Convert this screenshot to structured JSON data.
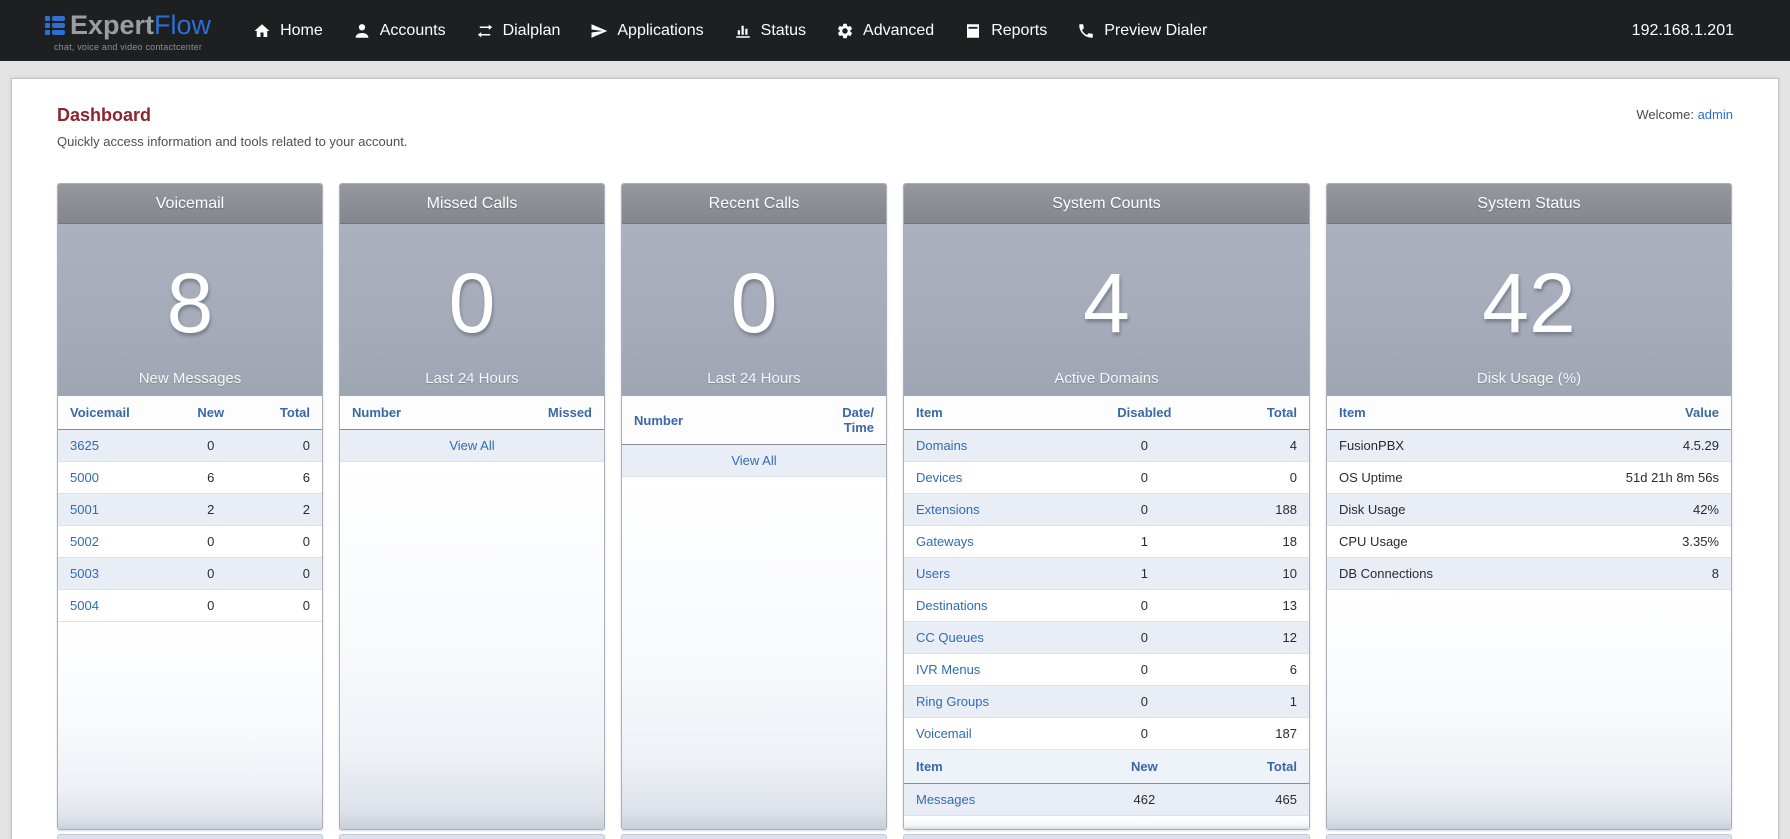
{
  "navbar": {
    "logo": {
      "expert": "Expert",
      "flow": "Flow",
      "tagline": "chat, voice and video contactcenter"
    },
    "items": [
      {
        "label": "Home",
        "icon": "home-icon"
      },
      {
        "label": "Accounts",
        "icon": "user-icon"
      },
      {
        "label": "Dialplan",
        "icon": "swap-arrows-icon"
      },
      {
        "label": "Applications",
        "icon": "paper-plane-icon"
      },
      {
        "label": "Status",
        "icon": "bar-chart-icon"
      },
      {
        "label": "Advanced",
        "icon": "gear-icon"
      },
      {
        "label": "Reports",
        "icon": "book-icon"
      },
      {
        "label": "Preview Dialer",
        "icon": "phone-icon"
      }
    ],
    "server_ip": "192.168.1.201"
  },
  "page": {
    "title": "Dashboard",
    "subtitle": "Quickly access information and tools related to your account.",
    "welcome_label": "Welcome:",
    "welcome_user": "admin"
  },
  "cards": {
    "voicemail": {
      "title": "Voicemail",
      "stat": "8",
      "stat_label": "New Messages",
      "columns": [
        "Voicemail",
        "New",
        "Total"
      ],
      "rows": [
        [
          "3625",
          "0",
          "0"
        ],
        [
          "5000",
          "6",
          "6"
        ],
        [
          "5001",
          "2",
          "2"
        ],
        [
          "5002",
          "0",
          "0"
        ],
        [
          "5003",
          "0",
          "0"
        ],
        [
          "5004",
          "0",
          "0"
        ]
      ]
    },
    "missed_calls": {
      "title": "Missed Calls",
      "stat": "0",
      "stat_label": "Last 24 Hours",
      "columns": [
        "Number",
        "Missed"
      ],
      "view_all": "View All"
    },
    "recent_calls": {
      "title": "Recent Calls",
      "stat": "0",
      "stat_label": "Last 24 Hours",
      "columns": [
        "Number",
        "Date/\nTime"
      ],
      "view_all": "View All"
    },
    "system_counts": {
      "title": "System Counts",
      "stat": "4",
      "stat_label": "Active Domains",
      "columns": [
        "Item",
        "Disabled",
        "Total"
      ],
      "rows": [
        [
          "Domains",
          "0",
          "4"
        ],
        [
          "Devices",
          "0",
          "0"
        ],
        [
          "Extensions",
          "0",
          "188"
        ],
        [
          "Gateways",
          "1",
          "18"
        ],
        [
          "Users",
          "1",
          "10"
        ],
        [
          "Destinations",
          "0",
          "13"
        ],
        [
          "CC Queues",
          "0",
          "12"
        ],
        [
          "IVR Menus",
          "0",
          "6"
        ],
        [
          "Ring Groups",
          "0",
          "1"
        ],
        [
          "Voicemail",
          "0",
          "187"
        ]
      ],
      "columns2": [
        "Item",
        "New",
        "Total"
      ],
      "rows2": [
        [
          "Messages",
          "462",
          "465"
        ]
      ]
    },
    "system_status": {
      "title": "System Status",
      "stat": "42",
      "stat_label": "Disk Usage (%)",
      "columns": [
        "Item",
        "Value"
      ],
      "rows": [
        [
          "FusionPBX",
          "4.5.29"
        ],
        [
          "OS Uptime",
          "51d 21h 8m 56s"
        ],
        [
          "Disk Usage",
          "42%"
        ],
        [
          "CPU Usage",
          "3.35%"
        ],
        [
          "DB Connections",
          "8"
        ]
      ]
    }
  },
  "colors": {
    "navbar_bg": "#1e1f21",
    "logo_blue": "#2e6fd3",
    "title_red": "#8e242e",
    "table_header_blue": "#3a67a7",
    "link_blue": "#2e6cb5",
    "row_stripe": "#e9eef6",
    "card_header_gray": "#8b8e94",
    "card_body_gray": "#a5abb9"
  }
}
